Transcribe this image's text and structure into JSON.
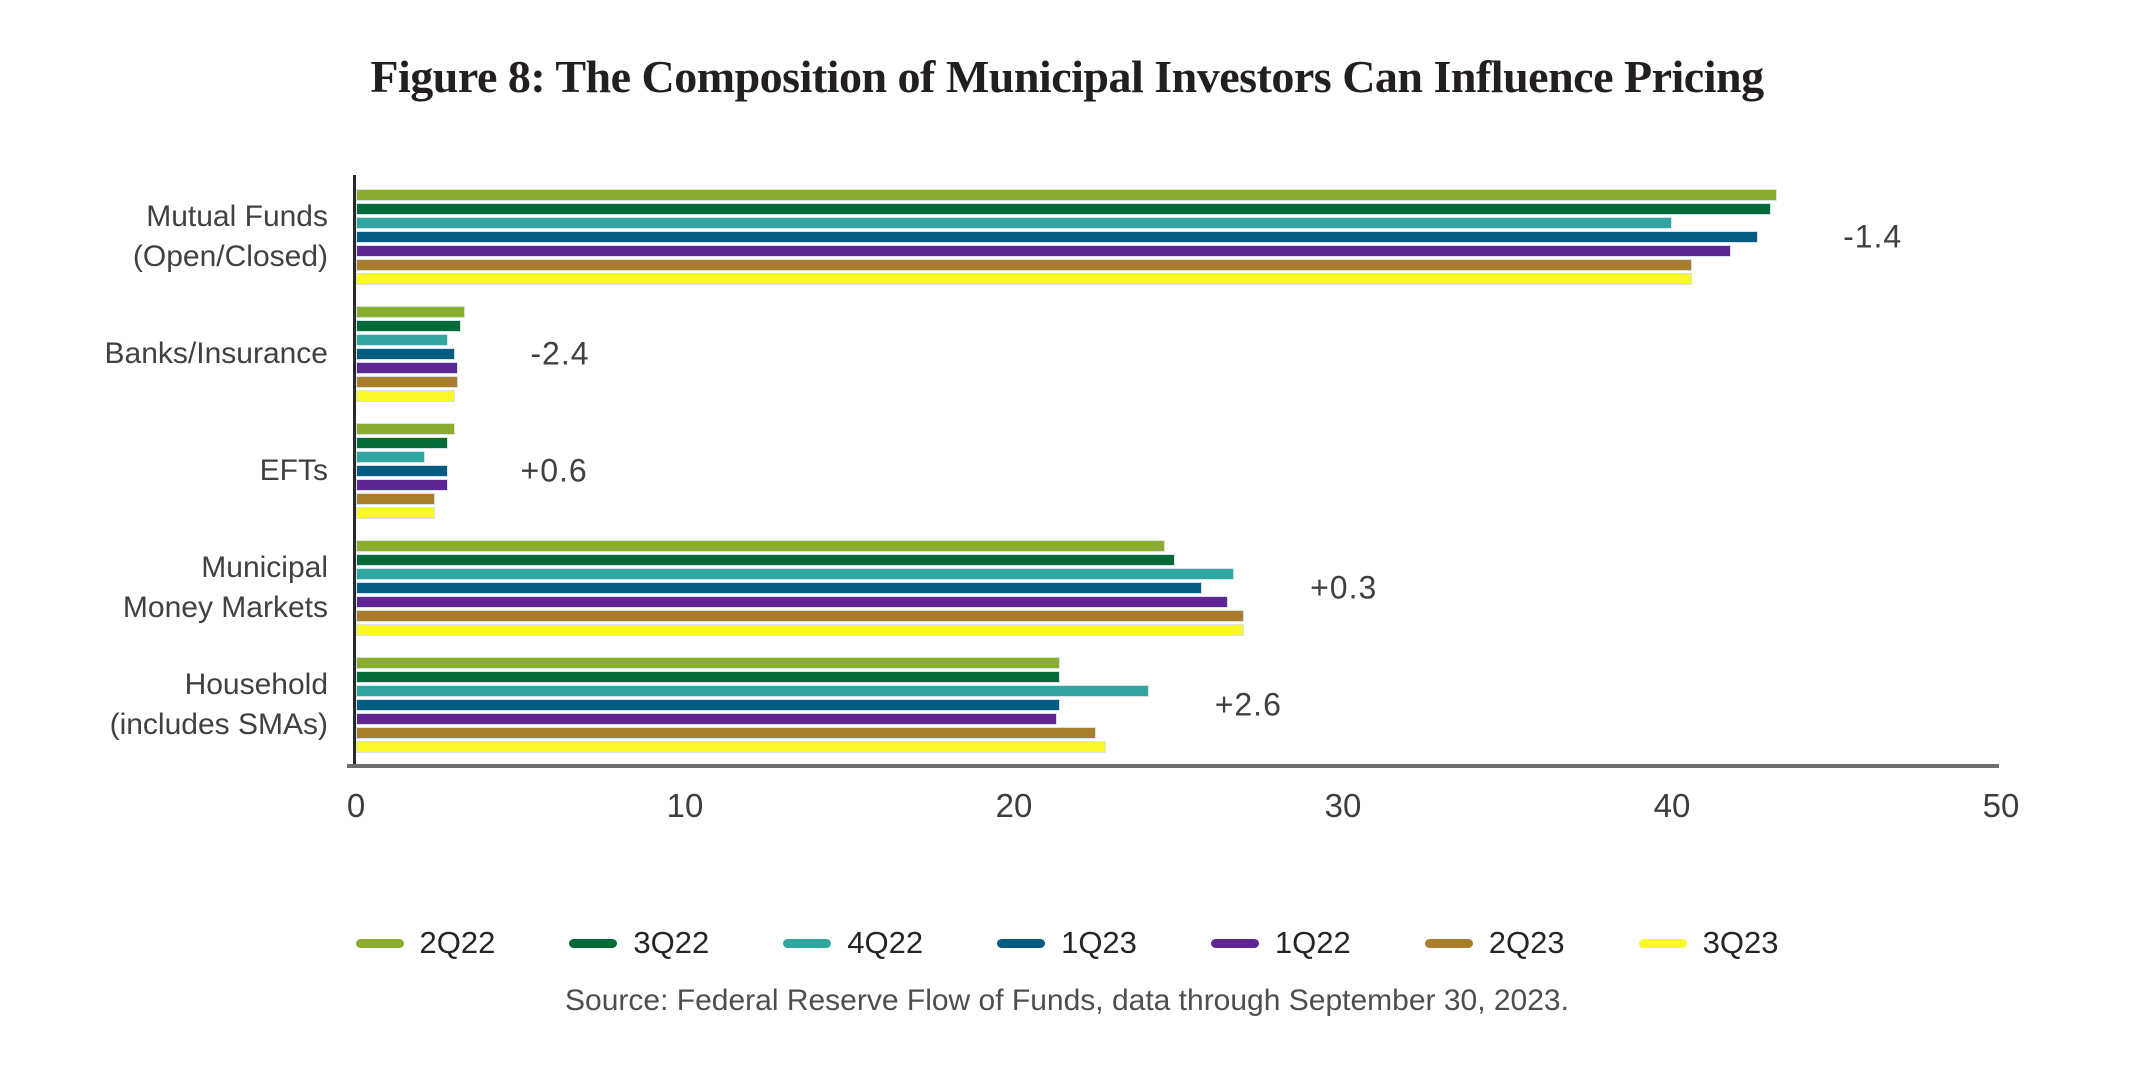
{
  "title": "Figure 8: The Composition of Municipal Investors Can Influence Pricing",
  "source": "Source: Federal Reserve Flow of Funds, data through September 30, 2023.",
  "chart_data": {
    "type": "bar",
    "orientation": "horizontal",
    "title": "Figure 8: The Composition of Municipal Investors Can Influence Pricing",
    "xlabel": "",
    "ylabel": "",
    "xlim": [
      0,
      50
    ],
    "xticks": [
      0,
      10,
      20,
      30,
      40,
      50
    ],
    "grid": false,
    "legend_position": "bottom",
    "categories": [
      "Mutual Funds (Open/Closed)",
      "Banks/Insurance",
      "EFTs",
      "Municipal Money Markets",
      "Household (includes SMAs)"
    ],
    "category_lines": [
      [
        "Mutual Funds",
        "(Open/Closed)"
      ],
      [
        "Banks/Insurance"
      ],
      [
        "EFTs"
      ],
      [
        "Municipal",
        "Money Markets"
      ],
      [
        "Household",
        "(includes SMAs)"
      ]
    ],
    "series": [
      {
        "name": "2Q22",
        "color": "#8BAD2F",
        "values": [
          43.2,
          3.3,
          3.0,
          24.6,
          21.4
        ]
      },
      {
        "name": "3Q22",
        "color": "#046B38",
        "values": [
          43.0,
          3.2,
          2.8,
          24.9,
          21.4
        ]
      },
      {
        "name": "4Q22",
        "color": "#30A69E",
        "values": [
          40.0,
          2.8,
          2.1,
          26.7,
          24.1
        ]
      },
      {
        "name": "1Q23",
        "color": "#055C82",
        "values": [
          42.6,
          3.0,
          2.8,
          25.7,
          21.4
        ]
      },
      {
        "name": "1Q22",
        "color": "#5F2592",
        "values": [
          41.8,
          3.1,
          2.8,
          26.5,
          21.3
        ]
      },
      {
        "name": "2Q23",
        "color": "#A87E2D",
        "values": [
          40.6,
          3.1,
          2.4,
          27.0,
          22.5
        ]
      },
      {
        "name": "3Q23",
        "color": "#FAF829",
        "values": [
          40.6,
          3.0,
          2.4,
          27.0,
          22.8
        ]
      }
    ],
    "annotations": [
      "-1.4",
      "-2.4",
      "+0.6",
      "+0.3",
      "+2.6"
    ],
    "annotation_offset_units": 2,
    "axis_colors": {
      "y_axis": "#28292b",
      "x_axis": "#6d6e71"
    }
  }
}
